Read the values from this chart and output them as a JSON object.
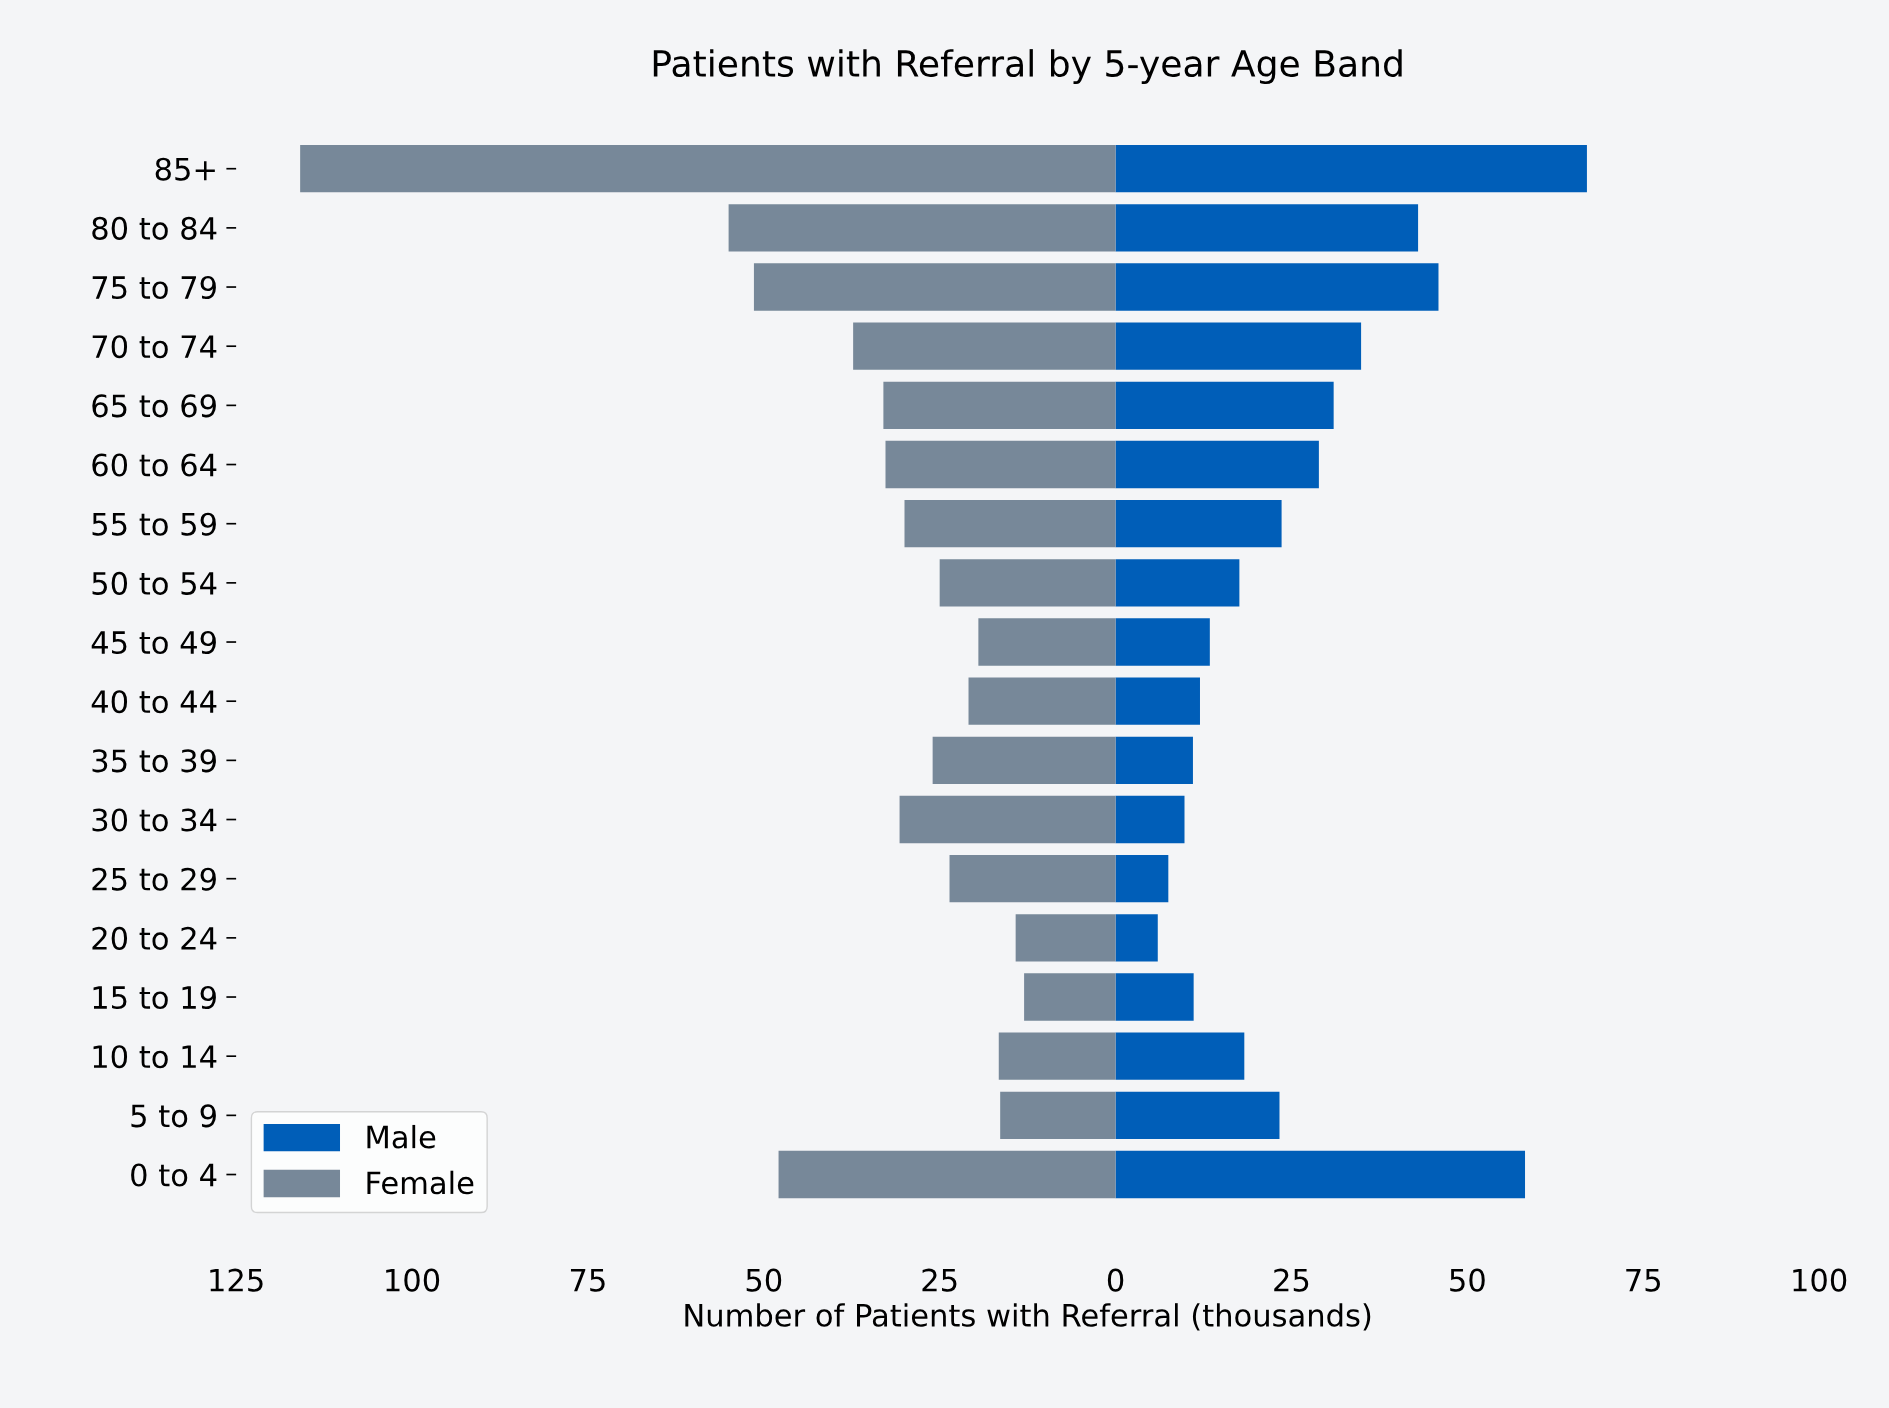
{
  "chart_data": {
    "type": "bar",
    "orientation": "horizontal",
    "stacked": true,
    "title": "Patients with Referral by 5-year Age Band",
    "xlabel": "Number of Patients with Referral (thousands)",
    "categories": [
      "85+",
      "80 to 84",
      "75 to 79",
      "70 to 74",
      "65 to 69",
      "60 to 64",
      "55 to 59",
      "50 to 54",
      "45 to 49",
      "40 to 44",
      "35 to 39",
      "30 to 34",
      "25 to 29",
      "20 to 24",
      "15 to 19",
      "10 to 14",
      "5 to 9",
      "0 to 4"
    ],
    "series": [
      {
        "name": "Male",
        "color": "#005eb8",
        "values": [
          67.0,
          43.0,
          45.9,
          34.9,
          31.0,
          28.9,
          23.6,
          17.6,
          13.4,
          12.0,
          11.0,
          9.8,
          7.5,
          6.0,
          11.1,
          18.3,
          23.3,
          58.2
        ]
      },
      {
        "name": "Female",
        "color": "#778899",
        "values": [
          -115.9,
          -55.0,
          -51.4,
          -37.3,
          -33.0,
          -32.7,
          -30.0,
          -25.0,
          -19.5,
          -20.9,
          -26.0,
          -30.7,
          -23.6,
          -14.2,
          -13.0,
          -16.6,
          -16.4,
          -47.9
        ]
      }
    ],
    "xlim": [
      -125,
      100
    ],
    "xticks": [
      {
        "value": -125,
        "label": "125"
      },
      {
        "value": -100,
        "label": "100"
      },
      {
        "value": -75,
        "label": "75"
      },
      {
        "value": -50,
        "label": "50"
      },
      {
        "value": -25,
        "label": "25"
      },
      0,
      25,
      50,
      75,
      100
    ],
    "grid": false,
    "legend": "bottom left"
  }
}
